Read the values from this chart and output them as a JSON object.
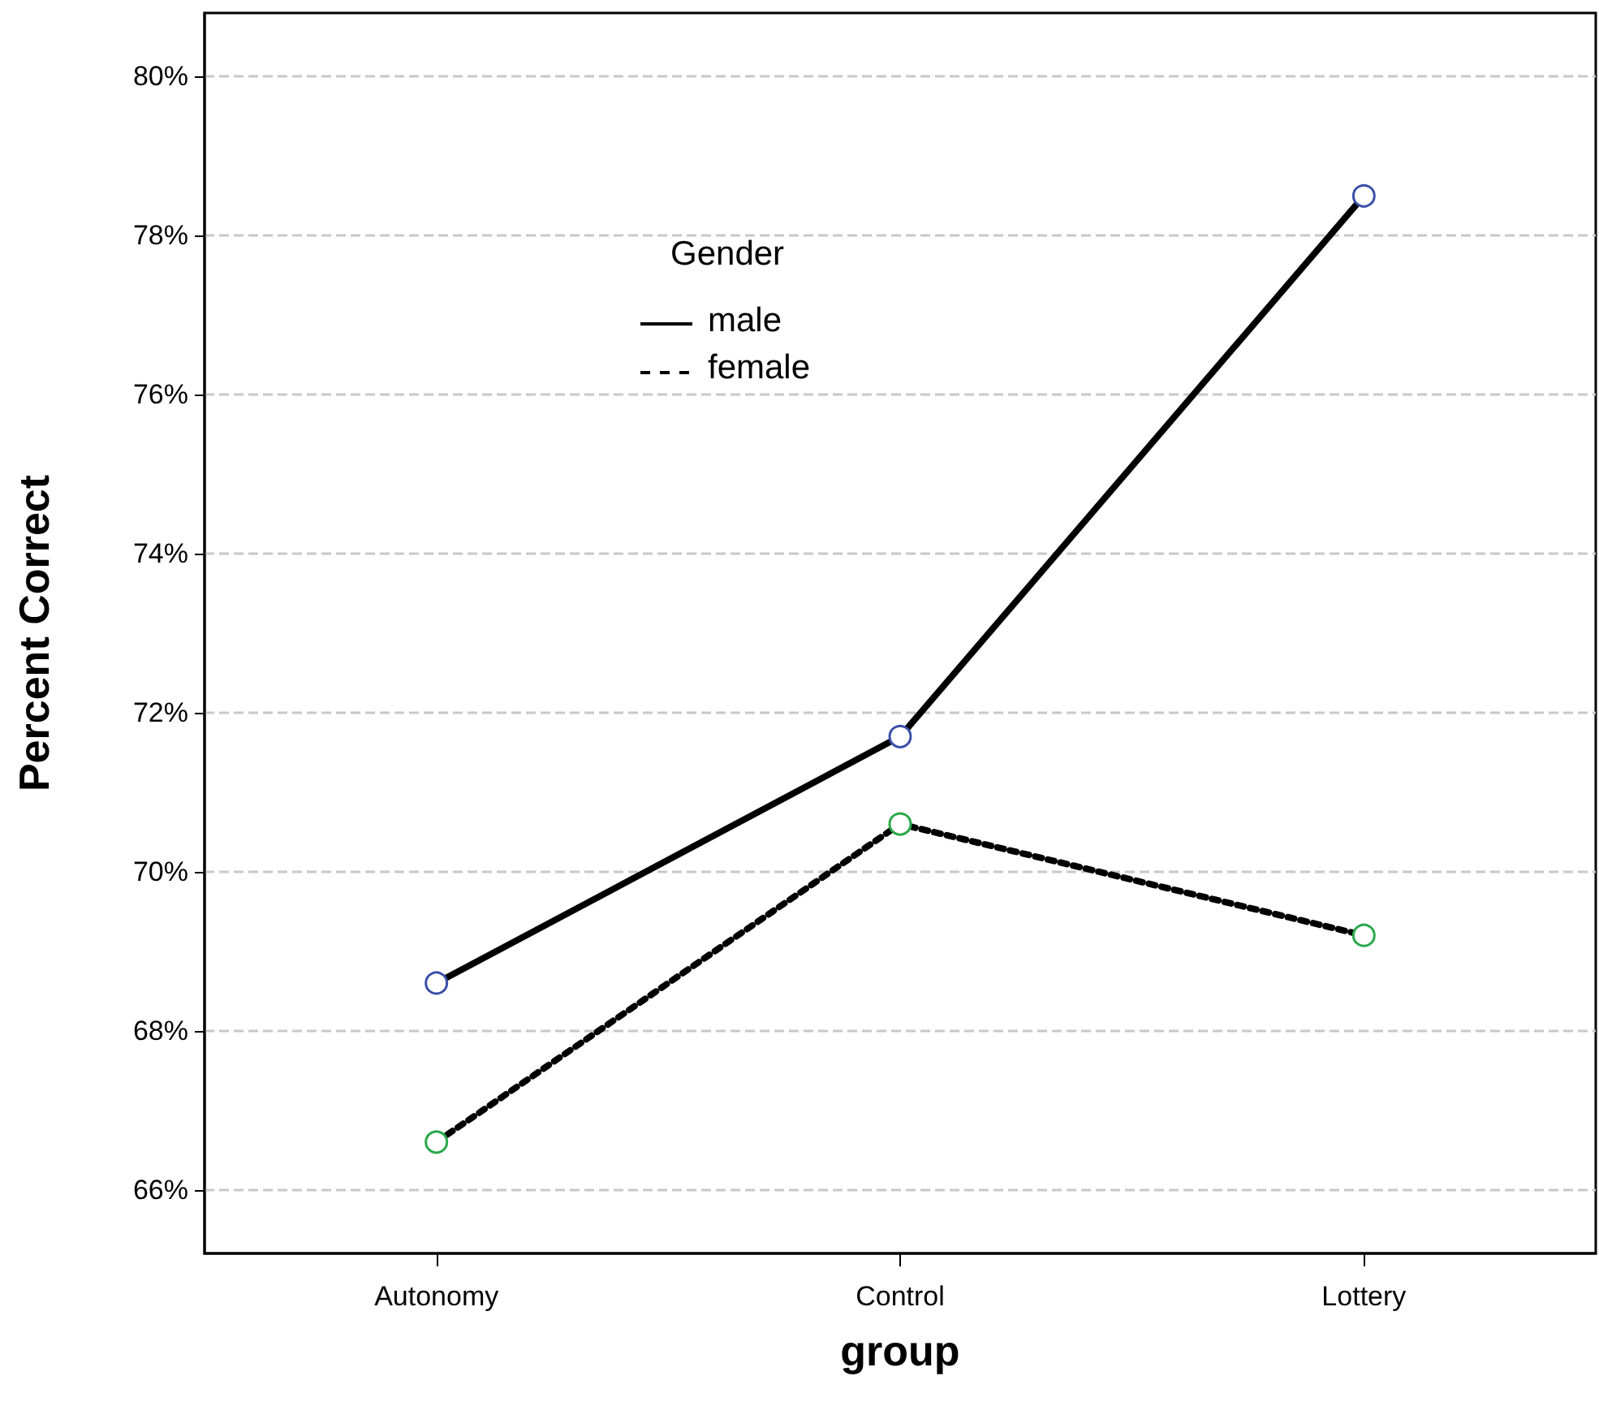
{
  "chart_data": {
    "type": "line",
    "xlabel": "group",
    "ylabel": "Percent Correct",
    "legend_title": "Gender",
    "categories": [
      "Autonomy",
      "Control",
      "Lottery"
    ],
    "series": [
      {
        "name": "male",
        "color": "#000000",
        "colors": [
          "#3a4fa8",
          "#3a4fa8",
          "#3a4fa8"
        ],
        "line_style": "solid",
        "values": [
          68.6,
          71.7,
          78.5
        ]
      },
      {
        "name": "female",
        "color": "#000000",
        "colors": [
          "#2aa84a",
          "#2aa84a",
          "#2aa84a"
        ],
        "line_style": "dotted",
        "values": [
          66.6,
          70.6,
          69.2
        ]
      }
    ],
    "ylim": [
      65.2,
      80.8
    ],
    "yticks": [
      {
        "value": 66,
        "label": "66%"
      },
      {
        "value": 68,
        "label": "68%"
      },
      {
        "value": 70,
        "label": "70%"
      },
      {
        "value": 72,
        "label": "72%"
      },
      {
        "value": 74,
        "label": "74%"
      },
      {
        "value": 76,
        "label": "76%"
      },
      {
        "value": 78,
        "label": "78%"
      },
      {
        "value": 80,
        "label": "80%"
      }
    ],
    "grid": "y",
    "legend": "top left",
    "marker": "circle"
  }
}
